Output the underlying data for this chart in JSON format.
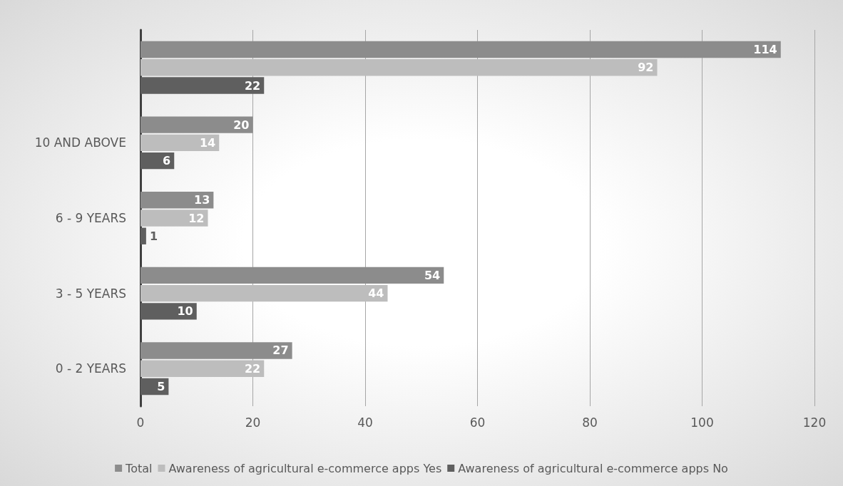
{
  "chart_data": {
    "type": "bar",
    "orientation": "horizontal",
    "categories": [
      null,
      "10 AND ABOVE",
      "6 - 9 YEARS",
      "3 - 5 YEARS",
      "0 - 2 YEARS"
    ],
    "series": [
      {
        "name": "Total",
        "color": "#8c8c8c",
        "values": [
          114,
          20,
          13,
          54,
          27
        ]
      },
      {
        "name": "Awareness of agricultural e-commerce apps Yes",
        "color": "#bdbdbd",
        "values": [
          92,
          14,
          12,
          44,
          22
        ]
      },
      {
        "name": "Awareness of agricultural e-commerce apps No",
        "color": "#5f5f5f",
        "values": [
          22,
          6,
          1,
          10,
          5
        ]
      }
    ],
    "xlim": [
      0,
      120
    ],
    "xticks": [
      0,
      20,
      40,
      60,
      80,
      100,
      120
    ],
    "grid": "x",
    "legend": "bottom",
    "data_labels": true
  }
}
